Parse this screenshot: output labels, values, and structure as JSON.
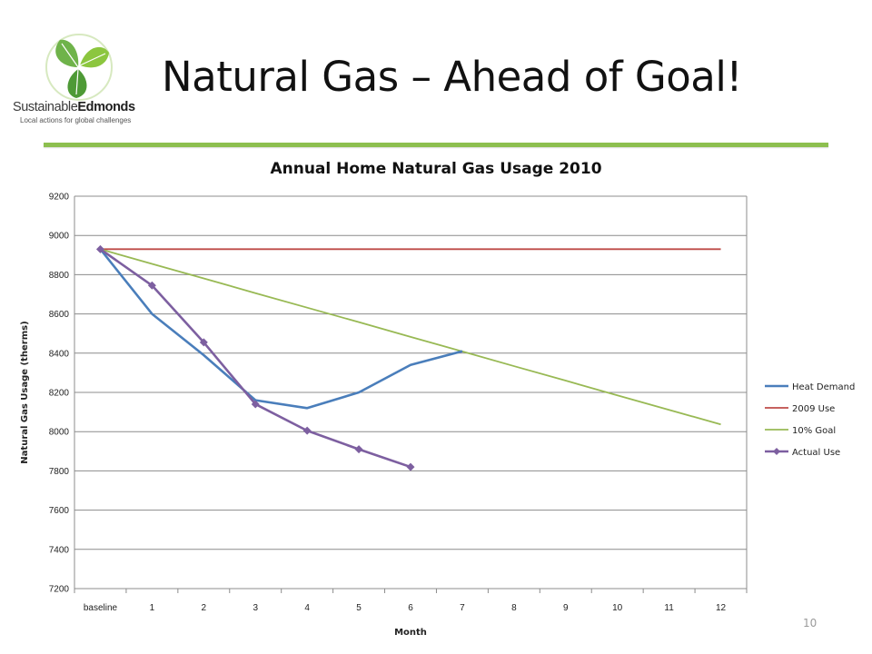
{
  "slide": {
    "title": "Natural Gas – Ahead of Goal!",
    "page_number": "10"
  },
  "logo": {
    "brand_part1": "Sustainable",
    "brand_part2": "Edmonds",
    "tagline": "Local actions for global challenges"
  },
  "colors": {
    "rule": "#8dbf4f"
  },
  "chart_data": {
    "type": "line",
    "title": "Annual Home Natural Gas Usage 2010",
    "xlabel": "Month",
    "ylabel": "Natural Gas Usage (therms)",
    "categories": [
      "baseline",
      "1",
      "2",
      "3",
      "4",
      "5",
      "6",
      "7",
      "8",
      "9",
      "10",
      "11",
      "12"
    ],
    "ylim": [
      7200,
      9200
    ],
    "y_ticks": [
      7200,
      7400,
      7600,
      7800,
      8000,
      8200,
      8400,
      8600,
      8800,
      9000,
      9200
    ],
    "grid": "horizontal",
    "legend_position": "right",
    "series": [
      {
        "name": "Heat Demand",
        "color": "#4a7ebb",
        "marker": "none",
        "values": [
          8930,
          8600,
          8390,
          8160,
          8120,
          8200,
          8340,
          8410,
          null,
          null,
          null,
          null,
          null
        ]
      },
      {
        "name": "2009 Use",
        "color": "#be4b48",
        "marker": "none",
        "values": [
          8930,
          8930,
          8930,
          8930,
          8930,
          8930,
          8930,
          8930,
          8930,
          8930,
          8930,
          8930,
          8930
        ]
      },
      {
        "name": "10% Goal",
        "color": "#98b954",
        "marker": "none",
        "values": [
          8930,
          8855,
          8781,
          8706,
          8632,
          8558,
          8483,
          8409,
          8334,
          8260,
          8185,
          8111,
          8037
        ]
      },
      {
        "name": "Actual Use",
        "color": "#7d5fa0",
        "marker": "diamond",
        "values": [
          8930,
          8745,
          8455,
          8140,
          8005,
          7910,
          7820,
          null,
          null,
          null,
          null,
          null,
          null
        ]
      }
    ]
  }
}
